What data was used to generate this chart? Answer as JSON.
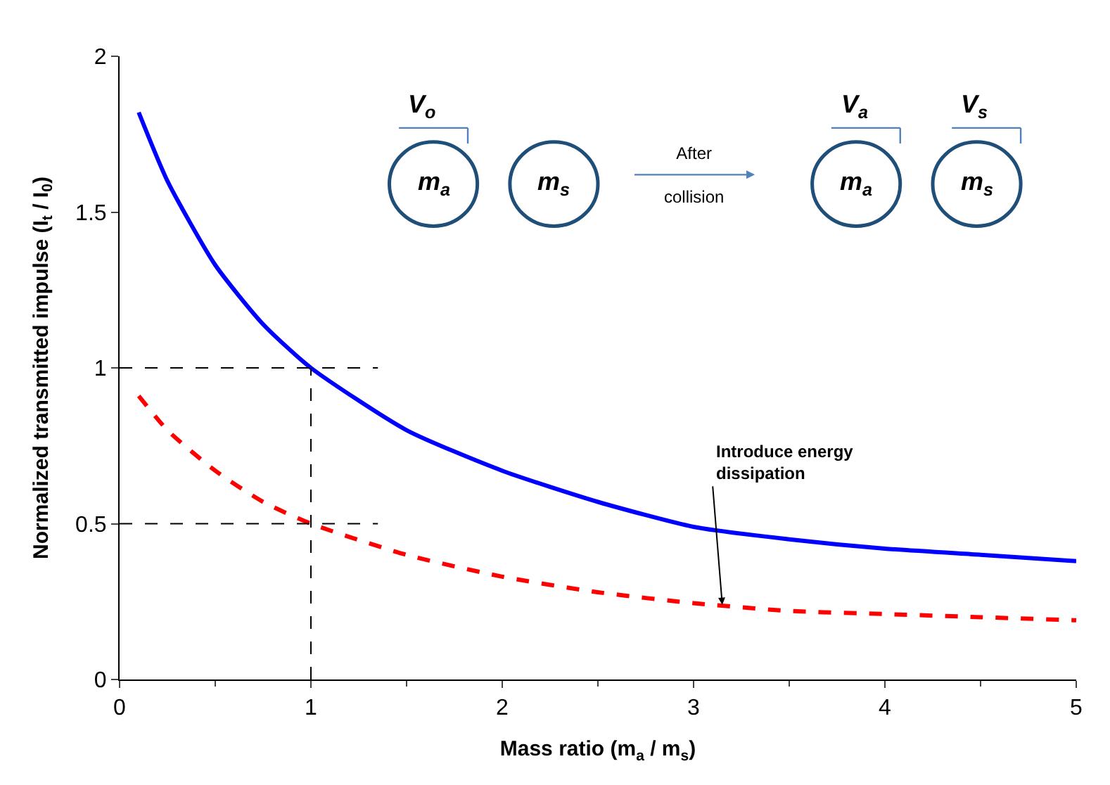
{
  "chart_data": {
    "type": "line",
    "xlabel": "Mass ratio (m$_{a}$ / m$_{s}$)",
    "ylabel": "Normalized transmitted impulse (I$_{t}$ / I$_{0}$)",
    "x": [
      0.1,
      0.25,
      0.5,
      0.75,
      1,
      1.5,
      2,
      2.5,
      3,
      3.5,
      4,
      4.5,
      5
    ],
    "series": [
      {
        "color": "#0000ff",
        "line_style": "solid",
        "values": [
          1.82,
          1.6,
          1.33,
          1.14,
          1.0,
          0.8,
          0.67,
          0.57,
          0.49,
          0.45,
          0.42,
          0.4,
          0.38
        ]
      },
      {
        "color": "#ff0000",
        "line_style": "dashed",
        "values": [
          0.91,
          0.8,
          0.67,
          0.57,
          0.5,
          0.4,
          0.33,
          0.28,
          0.245,
          0.22,
          0.21,
          0.2,
          0.19
        ]
      }
    ],
    "xlim": [
      0,
      5
    ],
    "xticks": [
      0,
      1,
      2,
      3,
      4,
      5
    ],
    "ylim": [
      0,
      2
    ],
    "yticks": [
      0,
      0.5,
      1,
      1.5,
      2
    ],
    "ref_lines": [
      {
        "axis": "x",
        "value": 1,
        "color": "#000000",
        "line_style": "dashed"
      },
      {
        "axis": "y",
        "value": 1,
        "color": "#000000",
        "line_style": "dashed"
      },
      {
        "axis": "y",
        "value": 0.5,
        "color": "#000000",
        "line_style": "dashed"
      }
    ],
    "annotations": [
      {
        "text": "Introduce energy dissipation",
        "x": 3.15,
        "y": 0.24
      },
      "V$_{o}$",
      "m$_{a}$",
      "m$_{s}$",
      "After collision",
      "V$_{a}$",
      "m$_{a}$",
      "V$_{s}$",
      "m$_{s}$"
    ],
    "legend": false,
    "marker": "none"
  }
}
